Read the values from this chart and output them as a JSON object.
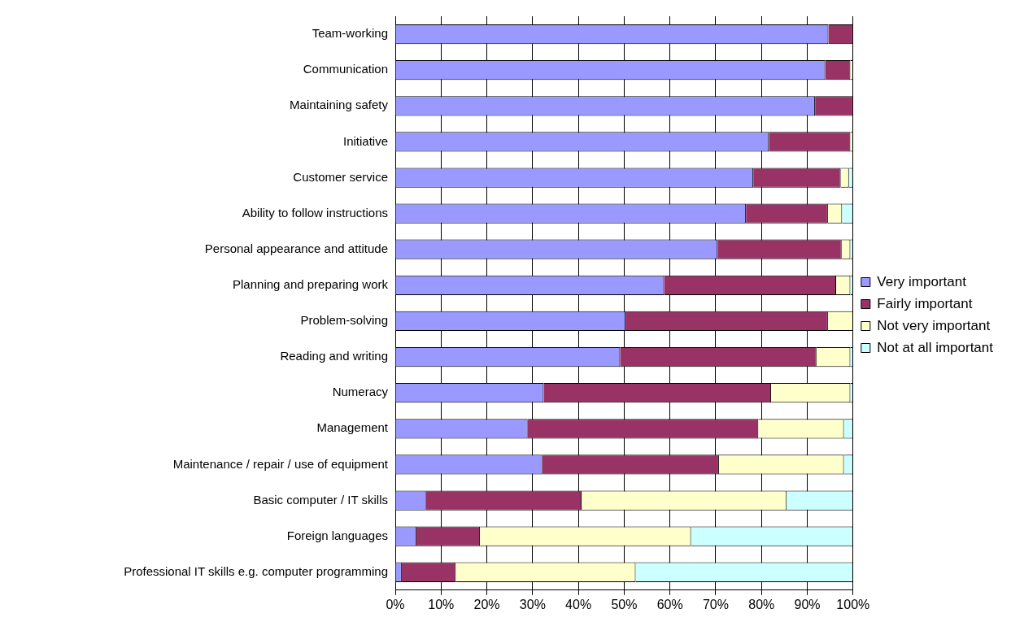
{
  "chart_data": {
    "type": "bar",
    "orientation": "horizontal",
    "stacked": true,
    "grid": "x",
    "legend": "right",
    "categories": [
      "Team-working",
      "Communication",
      "Maintaining safety",
      "Initiative",
      "Customer service",
      "Ability to follow instructions",
      "Personal appearance and attitude",
      "Planning and preparing work",
      "Problem-solving",
      "Reading and writing",
      "Numeracy",
      "Management",
      "Maintenance / repair / use of equipment",
      "Basic computer / IT skills",
      "Foreign languages",
      "Professional IT skills e.g. computer programming"
    ],
    "xlim": [
      0,
      100
    ],
    "xticks": [
      {
        "value": 0,
        "label": "0%"
      },
      {
        "value": 10,
        "label": "10%"
      },
      {
        "value": 20,
        "label": "20%"
      },
      {
        "value": 30,
        "label": "30%"
      },
      {
        "value": 40,
        "label": "40%"
      },
      {
        "value": 50,
        "label": "50%"
      },
      {
        "value": 60,
        "label": "60%"
      },
      {
        "value": 70,
        "label": "70%"
      },
      {
        "value": 80,
        "label": "80%"
      },
      {
        "value": 90,
        "label": "90%"
      },
      {
        "value": 100,
        "label": "100%"
      }
    ],
    "series": [
      {
        "name": "Very important",
        "color": "#9999ff",
        "values": [
          94.6,
          93.9,
          91.7,
          81.6,
          78.2,
          76.6,
          70.4,
          58.7,
          50.3,
          49.1,
          32.4,
          28.9,
          32.1,
          6.7,
          4.6,
          1.4
        ]
      },
      {
        "name": "Fairly important",
        "color": "#993366",
        "values": [
          5.4,
          5.5,
          8.3,
          17.8,
          19.1,
          17.9,
          27.1,
          37.6,
          44.2,
          42.9,
          49.7,
          50.4,
          38.6,
          34.0,
          13.9,
          11.8
        ]
      },
      {
        "name": "Not very important",
        "color": "#ffffcc",
        "values": [
          0,
          0.6,
          0,
          0.6,
          1.8,
          3.1,
          1.9,
          3.1,
          5.5,
          7.4,
          17.3,
          18.7,
          27.3,
          44.8,
          46.1,
          39.3
        ]
      },
      {
        "name": "Not at all important",
        "color": "#ccffff",
        "values": [
          0,
          0,
          0,
          0,
          0.9,
          2.4,
          0.6,
          0.6,
          0,
          0.6,
          0.6,
          2.0,
          2.0,
          14.5,
          35.4,
          47.5
        ]
      }
    ]
  }
}
